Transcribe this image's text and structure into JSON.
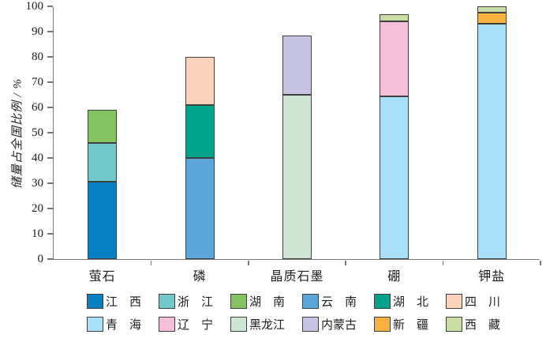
{
  "chart_data": {
    "type": "bar",
    "stacked": true,
    "title": "",
    "xlabel": "",
    "ylabel": "储量占全国比例 / %",
    "ylim": [
      0,
      100
    ],
    "yticks": [
      0,
      10,
      20,
      30,
      40,
      50,
      60,
      70,
      80,
      90,
      100
    ],
    "grid": false,
    "legend_position": "bottom",
    "legend_rows": 2,
    "axis_color": "#7a7a7a",
    "text_color": "#1f1f1f",
    "bar_border_color": "#404040",
    "categories": [
      "萤石",
      "磷",
      "晶质石墨",
      "硼",
      "钾盐"
    ],
    "series": [
      {
        "name": "江西",
        "display": "江　西",
        "color": "#0680c2",
        "values": [
          30.5,
          0,
          0,
          0,
          0
        ]
      },
      {
        "name": "浙江",
        "display": "浙　江",
        "color": "#72c8ca",
        "values": [
          15.5,
          0,
          0,
          0,
          0
        ]
      },
      {
        "name": "湖南",
        "display": "湖　南",
        "color": "#85c363",
        "values": [
          13,
          0,
          0,
          0,
          0
        ]
      },
      {
        "name": "云南",
        "display": "云　南",
        "color": "#5ba6d9",
        "values": [
          0,
          40,
          0,
          0,
          0
        ]
      },
      {
        "name": "湖北",
        "display": "湖　北",
        "color": "#00a28b",
        "values": [
          0,
          21,
          0,
          0,
          0
        ]
      },
      {
        "name": "四川",
        "display": "四　川",
        "color": "#fbd3bd",
        "values": [
          0,
          19,
          0,
          0,
          0
        ]
      },
      {
        "name": "青海",
        "display": "青　海",
        "color": "#a8e0fa",
        "values": [
          0,
          0,
          0,
          64.5,
          93
        ]
      },
      {
        "name": "辽宁",
        "display": "辽　宁",
        "color": "#f4c0d9",
        "values": [
          0,
          0,
          0,
          29.5,
          0
        ]
      },
      {
        "name": "黑龙江",
        "display": "黑龙江",
        "color": "#cfe5d3",
        "values": [
          0,
          0,
          65,
          0,
          0
        ]
      },
      {
        "name": "内蒙古",
        "display": "内蒙古",
        "color": "#c6c3e3",
        "values": [
          0,
          0,
          23.5,
          0,
          0
        ]
      },
      {
        "name": "新疆",
        "display": "新　疆",
        "color": "#f9b242",
        "values": [
          0,
          0,
          0,
          0,
          4.5
        ]
      },
      {
        "name": "西藏",
        "display": "西　藏",
        "color": "#cbdda6",
        "values": [
          0,
          0,
          0,
          3,
          2.5
        ]
      }
    ],
    "category_totals": [
      59,
      80,
      88.5,
      97,
      100
    ]
  }
}
